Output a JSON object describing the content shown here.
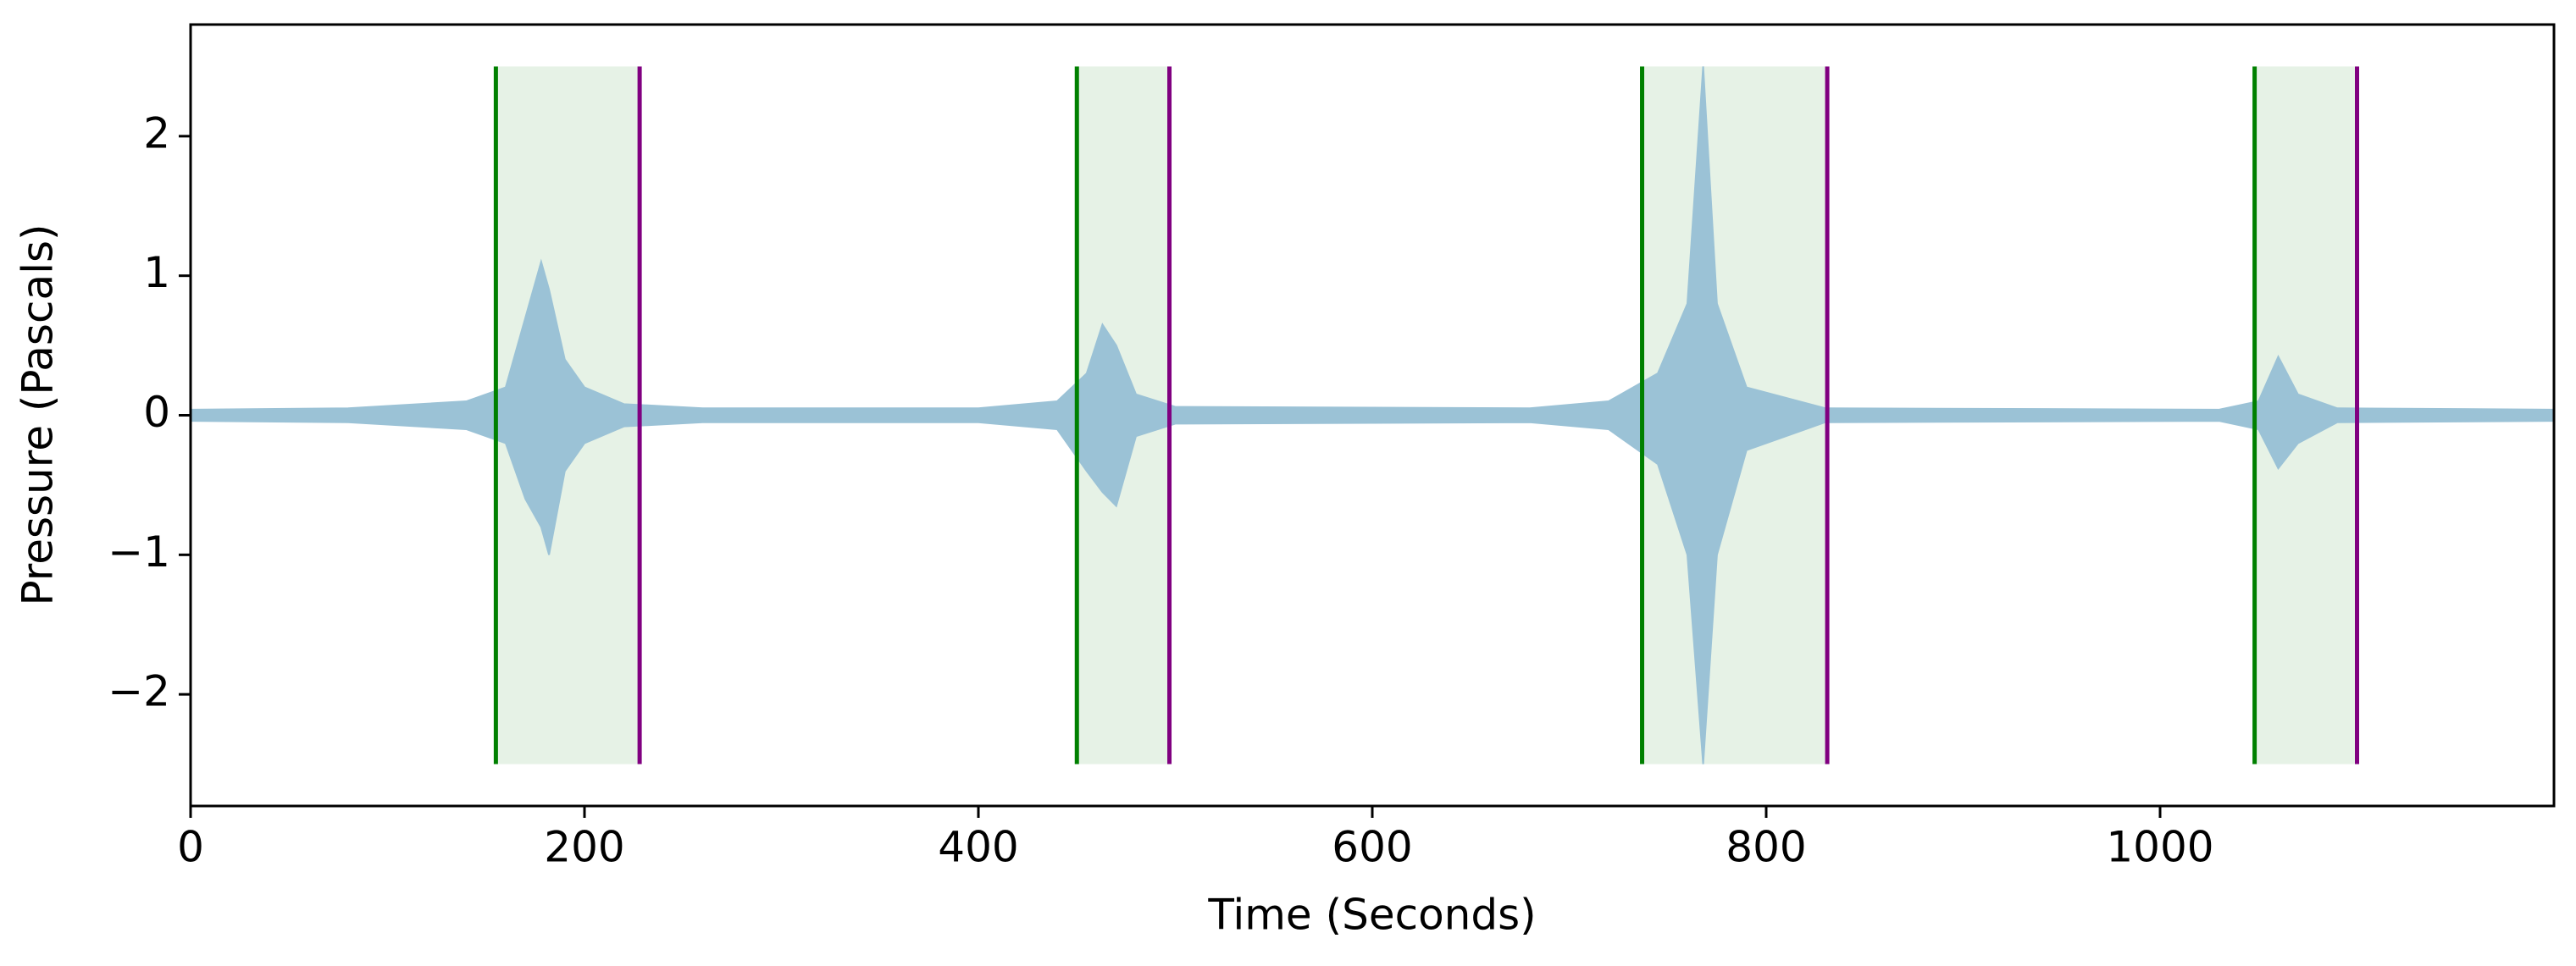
{
  "chart_data": {
    "type": "waveform",
    "xlabel": "Time (Seconds)",
    "ylabel": "Pressure (Pascals)",
    "xlim": [
      0,
      1200
    ],
    "ylim": [
      -2.8,
      2.8
    ],
    "xticks": [
      0,
      200,
      400,
      600,
      800,
      1000
    ],
    "yticks": [
      {
        "value": -2,
        "label": "−2"
      },
      {
        "value": -1,
        "label": "−1"
      },
      0,
      1,
      2
    ],
    "signal": {
      "color": "#9bc2d6",
      "x": [
        0,
        80,
        140,
        160,
        170,
        178,
        182,
        190,
        200,
        220,
        260,
        400,
        440,
        455,
        463,
        470,
        480,
        500,
        680,
        720,
        745,
        760,
        768,
        775,
        790,
        830,
        1030,
        1050,
        1060,
        1070,
        1090,
        1200
      ],
      "upper": [
        0.04,
        0.05,
        0.1,
        0.2,
        0.7,
        1.1,
        0.9,
        0.4,
        0.2,
        0.08,
        0.05,
        0.05,
        0.1,
        0.3,
        0.65,
        0.5,
        0.15,
        0.06,
        0.05,
        0.1,
        0.3,
        0.8,
        2.5,
        0.8,
        0.2,
        0.05,
        0.04,
        0.1,
        0.42,
        0.15,
        0.05,
        0.04
      ],
      "lower": [
        -0.04,
        -0.05,
        -0.1,
        -0.2,
        -0.6,
        -0.8,
        -1.0,
        -0.4,
        -0.2,
        -0.08,
        -0.05,
        -0.05,
        -0.1,
        -0.4,
        -0.55,
        -0.65,
        -0.15,
        -0.06,
        -0.05,
        -0.1,
        -0.35,
        -1.0,
        -2.5,
        -1.0,
        -0.25,
        -0.05,
        -0.04,
        -0.1,
        -0.38,
        -0.2,
        -0.05,
        -0.04
      ]
    },
    "region_span": [
      -2.5,
      2.5
    ],
    "region_fill": "#e6f2e6",
    "start_color": "#008000",
    "end_color": "#800080",
    "regions": [
      {
        "start": 155,
        "end": 228
      },
      {
        "start": 450,
        "end": 497
      },
      {
        "start": 737,
        "end": 831
      },
      {
        "start": 1048,
        "end": 1100
      }
    ]
  }
}
